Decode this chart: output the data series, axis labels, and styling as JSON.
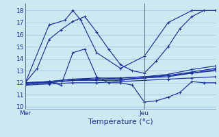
{
  "xlabel": "Température (°c)",
  "ylim": [
    9.8,
    18.6
  ],
  "xlim": [
    0,
    48
  ],
  "yticks": [
    10,
    11,
    12,
    13,
    14,
    15,
    16,
    17,
    18
  ],
  "background_color": "#cce8f0",
  "line_color": "#1a2fa0",
  "grid_color": "#a0c8e0",
  "mer_x": 0,
  "jeu_x": 30,
  "series": [
    {
      "x": [
        0,
        3,
        6,
        9,
        12,
        15,
        18,
        21,
        24,
        27,
        30,
        33,
        36,
        39,
        42,
        45,
        48
      ],
      "y": [
        12.0,
        13.2,
        15.6,
        16.4,
        17.1,
        17.5,
        16.2,
        14.8,
        13.5,
        13.0,
        12.8,
        13.8,
        15.0,
        16.5,
        17.5,
        18.0,
        18.0
      ]
    },
    {
      "x": [
        0,
        6,
        10,
        12,
        14,
        18,
        24,
        30,
        36,
        42,
        48
      ],
      "y": [
        12.0,
        16.8,
        17.2,
        18.0,
        17.2,
        14.5,
        13.2,
        14.2,
        17.0,
        18.0,
        18.0
      ]
    },
    {
      "x": [
        0,
        3,
        6,
        9,
        12,
        15,
        18,
        21,
        24,
        27,
        30,
        33,
        36,
        39,
        42,
        45,
        48
      ],
      "y": [
        11.8,
        12.0,
        12.1,
        11.8,
        14.5,
        14.8,
        12.5,
        12.0,
        12.0,
        11.8,
        10.4,
        10.5,
        10.8,
        11.2,
        12.1,
        12.0,
        12.0
      ]
    },
    {
      "x": [
        0,
        6,
        12,
        18,
        24,
        30,
        36,
        42,
        48
      ],
      "y": [
        12.0,
        12.1,
        12.3,
        12.4,
        12.4,
        12.5,
        12.7,
        13.1,
        13.4
      ]
    },
    {
      "x": [
        0,
        6,
        12,
        18,
        24,
        30,
        36,
        42,
        48
      ],
      "y": [
        11.9,
        12.0,
        12.2,
        12.3,
        12.3,
        12.4,
        12.6,
        12.9,
        13.2
      ]
    },
    {
      "x": [
        0,
        6,
        12,
        18,
        24,
        30,
        36,
        42,
        48
      ],
      "y": [
        12.0,
        12.0,
        12.2,
        12.2,
        12.2,
        12.4,
        12.5,
        12.8,
        13.0
      ]
    },
    {
      "x": [
        0,
        6,
        12,
        18,
        24,
        30,
        36,
        42,
        48
      ],
      "y": [
        12.0,
        12.1,
        12.3,
        12.3,
        12.4,
        12.5,
        12.6,
        12.8,
        13.1
      ]
    },
    {
      "x": [
        0,
        6,
        12,
        18,
        24,
        30,
        36,
        42,
        48
      ],
      "y": [
        11.8,
        11.9,
        12.0,
        12.0,
        12.1,
        12.2,
        12.3,
        12.4,
        12.5
      ]
    }
  ],
  "label_fontsize": 6.5,
  "xlabel_fontsize": 8,
  "tick_label_color": "#1a2fa0"
}
